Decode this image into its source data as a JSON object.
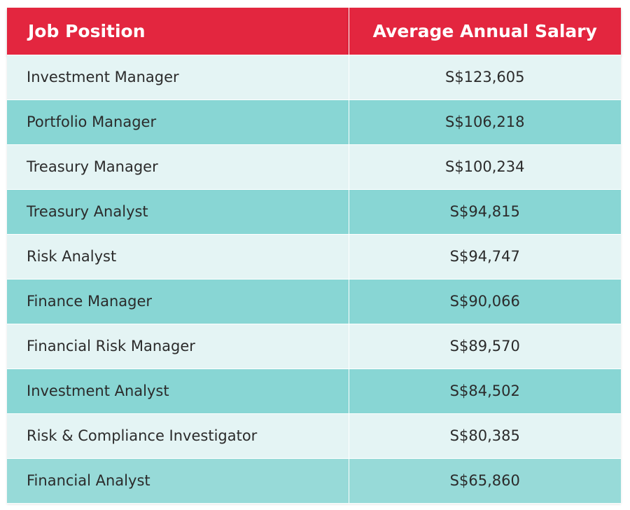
{
  "colors": {
    "header_bg": "#e3263f",
    "row_light": "#e4f4f4",
    "row_dark": "#88d6d4"
  },
  "chart_data": {
    "type": "table",
    "columns": [
      "Job Position",
      "Average Annual Salary"
    ],
    "rows": [
      {
        "position": "Investment Manager",
        "salary": "S$123,605"
      },
      {
        "position": "Portfolio Manager",
        "salary": "S$106,218"
      },
      {
        "position": "Treasury Manager",
        "salary": "S$100,234"
      },
      {
        "position": "Treasury Analyst",
        "salary": "S$94,815"
      },
      {
        "position": "Risk Analyst",
        "salary": "S$94,747"
      },
      {
        "position": "Finance Manager",
        "salary": "S$90,066"
      },
      {
        "position": "Financial Risk Manager",
        "salary": "S$89,570"
      },
      {
        "position": "Investment Analyst",
        "salary": "S$84,502"
      },
      {
        "position": "Risk & Compliance Investigator",
        "salary": "S$80,385"
      },
      {
        "position": "Financial Analyst",
        "salary": "S$65,860"
      }
    ]
  }
}
